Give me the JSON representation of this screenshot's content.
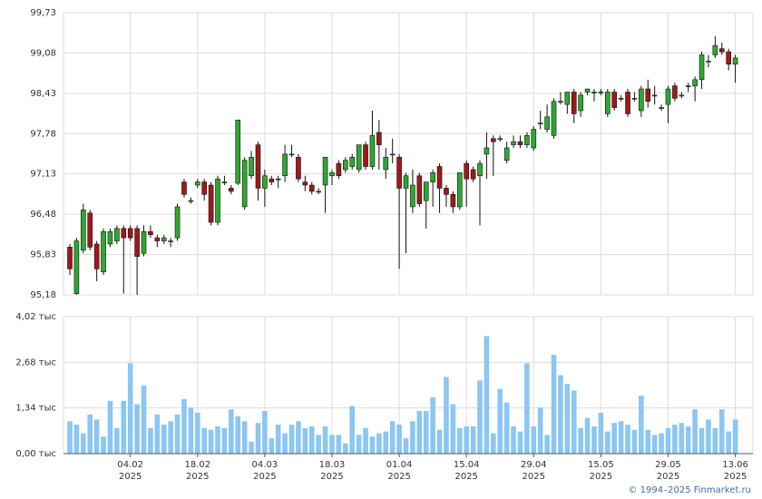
{
  "chart_data": [
    {
      "type": "candlestick",
      "up_color": "#2fa82f",
      "down_color": "#a01818",
      "grid": true,
      "ylim": [
        95.18,
        99.73
      ],
      "yticks": [
        {
          "value": 95.18,
          "label": "95,18"
        },
        {
          "value": 95.83,
          "label": "95,83"
        },
        {
          "value": 96.48,
          "label": "96,48"
        },
        {
          "value": 97.13,
          "label": "97,13"
        },
        {
          "value": 97.78,
          "label": "97,78"
        },
        {
          "value": 98.43,
          "label": "98,43"
        },
        {
          "value": 99.08,
          "label": "99,08"
        },
        {
          "value": 99.73,
          "label": "99,73"
        }
      ],
      "open": [
        95.95,
        95.2,
        95.9,
        96.5,
        96.0,
        95.55,
        96.0,
        96.05,
        96.25,
        96.25,
        96.25,
        95.85,
        96.2,
        96.1,
        96.05,
        96.05,
        96.1,
        97.0,
        96.7,
        96.95,
        97.0,
        96.95,
        96.35,
        97.0,
        96.9,
        96.98,
        96.6,
        97.1,
        97.6,
        96.9,
        97.05,
        97.05,
        97.1,
        97.45,
        97.4,
        97.0,
        96.95,
        96.85,
        96.95,
        97.1,
        97.3,
        97.2,
        97.25,
        97.2,
        97.6,
        97.25,
        97.8,
        97.2,
        97.45,
        97.4,
        96.9,
        96.6,
        97.1,
        96.7,
        97.0,
        97.25,
        96.9,
        96.8,
        96.6,
        97.3,
        97.2,
        97.1,
        97.45,
        97.7,
        97.7,
        97.35,
        97.6,
        97.65,
        97.6,
        97.55,
        97.95,
        97.85,
        97.75,
        98.3,
        98.25,
        98.45,
        98.15,
        98.45,
        98.45,
        98.45,
        98.1,
        98.45,
        98.35,
        98.45,
        98.35,
        98.15,
        98.5,
        98.4,
        98.2,
        98.25,
        98.55,
        98.4,
        98.55,
        98.55,
        98.65,
        98.95,
        99.05,
        99.15,
        99.1,
        98.9
      ],
      "high": [
        96.0,
        96.1,
        96.65,
        96.55,
        96.05,
        96.25,
        96.25,
        96.3,
        96.3,
        96.3,
        96.3,
        96.3,
        96.3,
        96.15,
        96.15,
        96.1,
        96.65,
        97.05,
        96.75,
        97.05,
        97.05,
        97.0,
        97.1,
        97.1,
        96.95,
        98.0,
        97.4,
        97.5,
        97.65,
        97.2,
        97.1,
        97.1,
        97.6,
        97.6,
        97.45,
        97.1,
        97.0,
        96.9,
        97.4,
        97.2,
        97.35,
        97.4,
        97.45,
        97.6,
        97.65,
        98.15,
        98.0,
        97.55,
        97.7,
        97.45,
        97.15,
        97.2,
        97.15,
        97.0,
        97.2,
        97.3,
        96.95,
        96.85,
        97.15,
        97.35,
        97.25,
        97.35,
        97.8,
        97.75,
        97.75,
        97.65,
        97.75,
        97.75,
        97.8,
        97.9,
        98.15,
        98.25,
        98.35,
        98.45,
        98.45,
        98.5,
        98.45,
        98.5,
        98.5,
        98.5,
        98.5,
        98.5,
        98.4,
        98.5,
        98.45,
        98.55,
        98.65,
        98.55,
        98.25,
        98.55,
        98.6,
        98.45,
        98.6,
        98.7,
        99.1,
        99.05,
        99.35,
        99.25,
        99.15,
        99.05
      ],
      "low": [
        95.5,
        95.18,
        95.85,
        95.9,
        95.4,
        95.5,
        95.95,
        96.0,
        95.2,
        96.05,
        95.18,
        95.8,
        96.1,
        95.95,
        96.0,
        95.95,
        96.05,
        96.75,
        96.65,
        96.9,
        96.7,
        96.3,
        96.3,
        96.95,
        96.8,
        96.95,
        96.55,
        97.05,
        96.7,
        96.6,
        96.95,
        96.9,
        97.0,
        97.4,
        97.0,
        96.85,
        96.8,
        96.8,
        96.5,
        96.95,
        97.05,
        97.15,
        97.2,
        97.15,
        97.2,
        97.2,
        97.2,
        97.05,
        97.3,
        95.6,
        95.85,
        96.5,
        96.6,
        96.25,
        96.6,
        96.5,
        96.6,
        96.5,
        96.55,
        96.6,
        97.0,
        96.3,
        97.05,
        97.1,
        97.65,
        97.3,
        97.55,
        97.55,
        97.55,
        97.5,
        97.85,
        97.8,
        97.7,
        98.25,
        98.1,
        97.95,
        98.05,
        98.4,
        98.3,
        98.4,
        98.05,
        98.15,
        98.3,
        98.05,
        98.3,
        98.05,
        98.2,
        98.25,
        98.15,
        97.95,
        98.3,
        98.35,
        98.45,
        98.3,
        98.5,
        98.85,
        99.0,
        99.05,
        98.8,
        98.6
      ],
      "close": [
        95.6,
        96.05,
        96.55,
        95.95,
        95.6,
        96.2,
        96.2,
        96.25,
        96.1,
        96.1,
        95.8,
        96.2,
        96.15,
        96.05,
        96.1,
        96.05,
        96.6,
        96.8,
        96.7,
        97.0,
        96.8,
        96.35,
        97.05,
        97.0,
        96.85,
        98.0,
        97.35,
        97.4,
        96.9,
        97.1,
        97.0,
        97.05,
        97.45,
        97.45,
        97.05,
        96.95,
        96.85,
        96.85,
        97.4,
        97.15,
        97.1,
        97.35,
        97.4,
        97.6,
        97.25,
        97.75,
        97.6,
        97.4,
        97.45,
        96.9,
        97.1,
        96.95,
        96.65,
        97.0,
        97.15,
        96.9,
        96.8,
        96.6,
        97.15,
        97.05,
        97.05,
        97.3,
        97.55,
        97.65,
        97.7,
        97.55,
        97.65,
        97.6,
        97.75,
        97.85,
        97.95,
        98.05,
        98.3,
        98.3,
        98.45,
        98.1,
        98.4,
        98.5,
        98.45,
        98.45,
        98.45,
        98.2,
        98.35,
        98.1,
        98.35,
        98.5,
        98.3,
        98.4,
        98.2,
        98.5,
        98.35,
        98.4,
        98.55,
        98.65,
        99.05,
        98.95,
        99.2,
        99.1,
        98.9,
        99.0
      ]
    },
    {
      "type": "bar",
      "color": "#8cc6f2",
      "grid": true,
      "ylim": [
        0,
        4.02
      ],
      "yticks": [
        {
          "value": 0,
          "label": "0,00 тыс"
        },
        {
          "value": 1.34,
          "label": "1,34 тыс"
        },
        {
          "value": 2.68,
          "label": "2,68 тыс"
        },
        {
          "value": 4.02,
          "label": "4,02 тыс"
        }
      ],
      "categories": [
        null,
        null,
        null,
        null,
        null,
        null,
        null,
        null,
        null,
        "04.02\n2025",
        null,
        null,
        null,
        null,
        null,
        null,
        null,
        null,
        null,
        "18.02\n2025",
        null,
        null,
        null,
        null,
        null,
        null,
        null,
        null,
        null,
        "04.03\n2025",
        null,
        null,
        null,
        null,
        null,
        null,
        null,
        null,
        null,
        "18.03\n2025",
        null,
        null,
        null,
        null,
        null,
        null,
        null,
        null,
        null,
        "01.04\n2025",
        null,
        null,
        null,
        null,
        null,
        null,
        null,
        null,
        null,
        "15.04\n2025",
        null,
        null,
        null,
        null,
        null,
        null,
        null,
        null,
        null,
        "29.04\n2025",
        null,
        null,
        null,
        null,
        null,
        null,
        null,
        null,
        null,
        "15.05\n2025",
        null,
        null,
        null,
        null,
        null,
        null,
        null,
        null,
        null,
        "29.05\n2025",
        null,
        null,
        null,
        null,
        null,
        null,
        null,
        null,
        null,
        "13.06\n2025"
      ],
      "values": [
        0.95,
        0.85,
        0.6,
        1.15,
        1.0,
        0.5,
        1.55,
        0.75,
        1.55,
        2.65,
        1.45,
        2.0,
        0.75,
        1.15,
        0.85,
        0.95,
        1.15,
        1.6,
        1.35,
        1.2,
        0.75,
        0.7,
        0.8,
        0.75,
        1.3,
        1.1,
        0.95,
        0.35,
        0.9,
        1.25,
        0.45,
        0.85,
        0.6,
        0.85,
        0.95,
        0.75,
        0.8,
        0.55,
        0.8,
        0.55,
        0.55,
        0.3,
        1.4,
        0.55,
        0.75,
        0.5,
        0.6,
        0.65,
        0.95,
        0.85,
        0.45,
        0.95,
        1.25,
        1.25,
        1.65,
        0.7,
        2.25,
        1.45,
        0.75,
        0.8,
        0.8,
        2.15,
        3.45,
        0.6,
        1.9,
        1.5,
        0.8,
        0.65,
        2.65,
        0.8,
        1.35,
        0.55,
        2.9,
        2.3,
        2.05,
        1.85,
        0.75,
        1.05,
        0.8,
        1.2,
        0.65,
        0.9,
        0.95,
        0.85,
        0.7,
        1.7,
        0.7,
        0.55,
        0.6,
        0.75,
        0.85,
        0.9,
        0.8,
        1.3,
        0.75,
        1.0,
        0.75,
        1.3,
        0.65,
        1.0
      ]
    }
  ],
  "footer": "© 1994–2025 Finmarket.ru"
}
